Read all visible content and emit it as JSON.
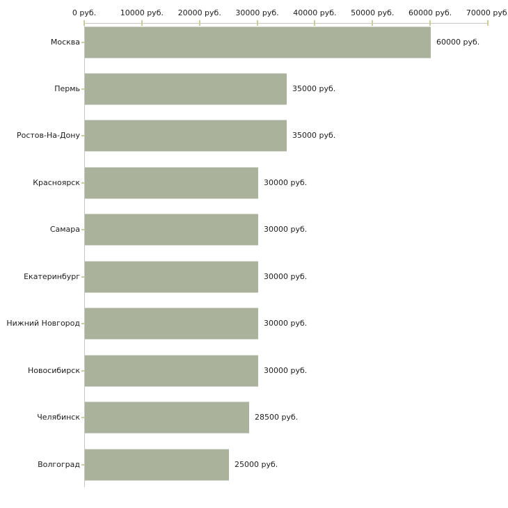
{
  "chart_data": {
    "type": "bar",
    "orientation": "horizontal",
    "categories": [
      "Москва",
      "Пермь",
      "Ростов-На-Дону",
      "Красноярск",
      "Самара",
      "Екатеринбург",
      "Нижний Новгород",
      "Новосибирск",
      "Челябинск",
      "Волгоград"
    ],
    "values": [
      60000,
      35000,
      35000,
      30000,
      30000,
      30000,
      30000,
      30000,
      28500,
      25000
    ],
    "value_labels": [
      "60000 руб.",
      "35000 руб.",
      "35000 руб.",
      "30000 руб.",
      "30000 руб.",
      "30000 руб.",
      "30000 руб.",
      "30000 руб.",
      "28500 руб.",
      "25000 руб."
    ],
    "unit": "руб.",
    "xlim": [
      0,
      70000
    ],
    "x_ticks": [
      0,
      10000,
      20000,
      30000,
      40000,
      50000,
      60000,
      70000
    ],
    "x_tick_labels": [
      "0 руб.",
      "10000 руб.",
      "20000 руб.",
      "30000 руб.",
      "40000 руб.",
      "50000 руб.",
      "60000 руб.",
      "70000 руб."
    ],
    "grid": false,
    "legend": false,
    "axis_position": "top",
    "colors": {
      "bar": "#abb29b",
      "axis": "#c4c4c4",
      "tick": "#cccc99",
      "text": "#1c1c1c",
      "background": "#ffffff"
    }
  }
}
